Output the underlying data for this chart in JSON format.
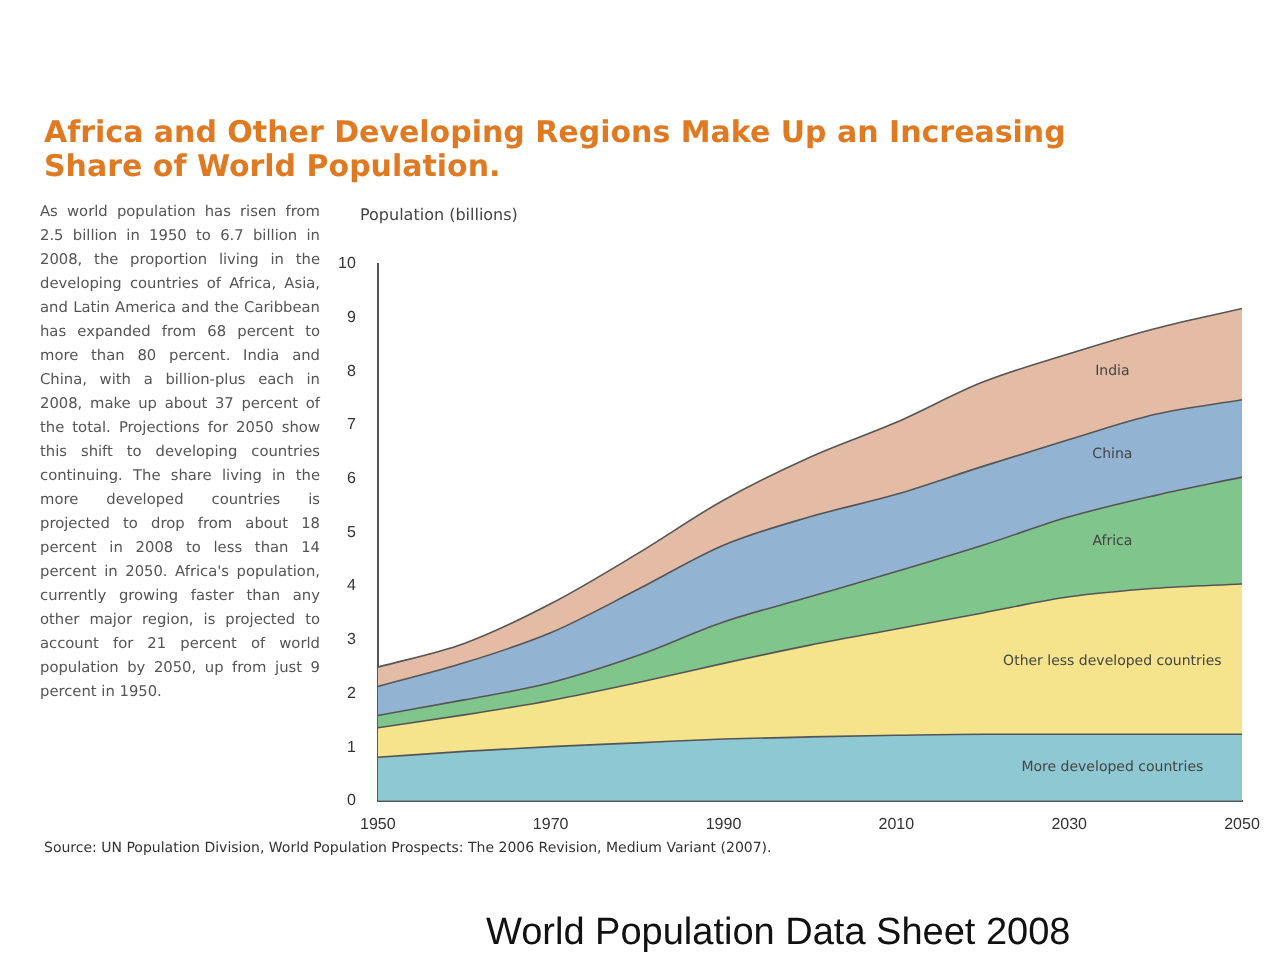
{
  "chart_data": {
    "type": "area",
    "stacked": true,
    "title": "Africa and Other Developing Regions Make Up an Increasing Share of World Population.",
    "ylabel": "Population (billions)",
    "x": [
      1950,
      1960,
      1970,
      1980,
      1990,
      2000,
      2010,
      2020,
      2030,
      2040,
      2050
    ],
    "xlim": [
      1950,
      2050
    ],
    "xticks": [
      1950,
      1970,
      1990,
      2010,
      2030,
      2050
    ],
    "ylim": [
      0,
      10
    ],
    "yticks": [
      0,
      1,
      2,
      3,
      4,
      5,
      6,
      7,
      8,
      9,
      10
    ],
    "grid": false,
    "legend": false,
    "series": [
      {
        "name": "More developed countries",
        "color": "#8ec8d2",
        "values": [
          0.81,
          0.92,
          1.01,
          1.08,
          1.15,
          1.19,
          1.22,
          1.24,
          1.24,
          1.24,
          1.24
        ]
      },
      {
        "name": "Other less developed countries",
        "color": "#f5e48c",
        "values": [
          0.55,
          0.68,
          0.86,
          1.12,
          1.41,
          1.71,
          1.98,
          2.26,
          2.56,
          2.72,
          2.8
        ]
      },
      {
        "name": "Africa",
        "color": "#80c58c",
        "values": [
          0.23,
          0.28,
          0.33,
          0.5,
          0.77,
          0.9,
          1.07,
          1.26,
          1.49,
          1.73,
          1.99
        ]
      },
      {
        "name": "China",
        "color": "#92b4d2",
        "values": [
          0.54,
          0.69,
          0.93,
          1.23,
          1.43,
          1.49,
          1.44,
          1.47,
          1.44,
          1.51,
          1.44
        ]
      },
      {
        "name": "India",
        "color": "#e4bba4",
        "values": [
          0.36,
          0.36,
          0.54,
          0.67,
          0.84,
          1.11,
          1.34,
          1.57,
          1.6,
          1.6,
          1.7
        ]
      }
    ],
    "annotations": [
      "As world population has risen from 2.5 billion in 1950 to 6.7 billion in 2008, the proportion living in the developing countries of Africa, Asia, and Latin America and the Caribbean has expanded from 68 percent to more than 80 percent. India and China, with a billion-plus each in 2008, make up about 37 percent of the total. Projections for 2050 show this shift to developing countries continuing. The share living in the more developed countries is projected to drop from about 18 percent in 2008 to less than 14 percent in 2050. Africa's population, currently growing faster than any other major region, is projected to account for 21 percent of world population by 2050, up from just 9 percent in 1950.",
      "Source: UN Population Division, World Population Prospects: The 2006 Revision, Medium Variant (2007).",
      "World Population Data Sheet 2008"
    ]
  }
}
